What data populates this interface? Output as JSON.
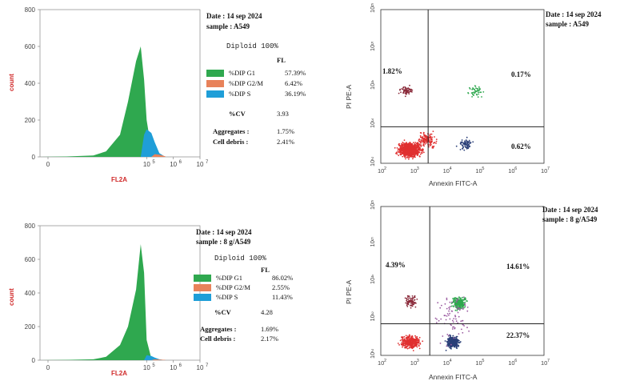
{
  "colors": {
    "g1": "#2fa84f",
    "g2m": "#e8825a",
    "s": "#1f9ed8",
    "lowleft": "#e03030",
    "upleft": "#8a2a3a",
    "upright": "#2fa84f",
    "lowright": "#2a3f78",
    "label": "#d02a2a"
  },
  "panels": {
    "hist_top": {
      "header_date": "Date : 14 sep 2024",
      "header_sample": "sample : A549",
      "diploid": "Diploid 100%",
      "fl": "FL",
      "rows": [
        {
          "label": "%DIP G1",
          "value": "57.39%"
        },
        {
          "label": "%DIP G2/M",
          "value": "6.42%"
        },
        {
          "label": "%DIP S",
          "value": "36.19%"
        }
      ],
      "cv_label": "%CV",
      "cv_value": "3.93",
      "agg_label": "Aggregates :",
      "agg_value": "1.75%",
      "deb_label": "Cell debris :",
      "deb_value": "2.41%",
      "ylabel": "count",
      "xlabel": "FL2A",
      "yticks": [
        "0",
        "200",
        "400",
        "600",
        "800"
      ],
      "xticks": [
        "0",
        "10",
        "5",
        "10",
        "6",
        "10",
        "7"
      ]
    },
    "hist_bottom": {
      "header_date": "Date : 14 sep 2024",
      "header_sample": "sample : 8 g/A549",
      "diploid": "Diploid 100%",
      "fl": "FL",
      "rows": [
        {
          "label": "%DIP G1",
          "value": "86.02%"
        },
        {
          "label": "%DIP G2/M",
          "value": "2.55%"
        },
        {
          "label": "%DIP S",
          "value": "11.43%"
        }
      ],
      "cv_label": "%CV",
      "cv_value": "4.28",
      "agg_label": "Aggregates :",
      "agg_value": "1.69%",
      "deb_label": "Cell debris :",
      "deb_value": "2.17%",
      "ylabel": "count",
      "xlabel": "FL2A",
      "yticks": [
        "0",
        "200",
        "400",
        "600",
        "800"
      ],
      "xticks": [
        "0",
        "10",
        "5",
        "10",
        "6",
        "10",
        "7"
      ]
    },
    "dot_top": {
      "header_date": "Date : 14 sep 2024",
      "header_sample": "sample : A549",
      "ylabel": "PI PE-A",
      "xlabel": "Annexin FITC-A",
      "q_ul": "1.82%",
      "q_ur": "0.17%",
      "q_lr": "0.62%"
    },
    "dot_bottom": {
      "header_date": "Date : 14 sep 2024",
      "header_sample": "sample : 8 g/A549",
      "ylabel": "PI PE-A",
      "xlabel": "Annexin FITC-A",
      "q_ul": "4.39%",
      "q_ur": "14.61%",
      "q_lr": "22.37%"
    }
  },
  "chart_data": [
    {
      "type": "area",
      "title": "",
      "xlabel": "FL2A",
      "ylabel": "count",
      "ylim": [
        0,
        800
      ],
      "x_scale": "log",
      "x": [
        10,
        100,
        1000,
        3000,
        10000,
        20000,
        40000,
        60000,
        80000,
        100000,
        150000,
        200000,
        300000,
        500000
      ],
      "series": [
        {
          "name": "%DIP G1",
          "values": [
            0,
            2,
            8,
            30,
            120,
            300,
            520,
            600,
            420,
            200,
            40,
            5,
            0,
            0
          ]
        },
        {
          "name": "%DIP S",
          "values": [
            0,
            0,
            0,
            0,
            0,
            0,
            0,
            0,
            120,
            150,
            130,
            80,
            20,
            0
          ]
        },
        {
          "name": "%DIP G2/M",
          "values": [
            0,
            0,
            0,
            0,
            0,
            0,
            0,
            0,
            0,
            0,
            0,
            15,
            12,
            3
          ]
        }
      ]
    },
    {
      "type": "area",
      "title": "",
      "xlabel": "FL2A",
      "ylabel": "count",
      "ylim": [
        0,
        800
      ],
      "x_scale": "log",
      "x": [
        10,
        100,
        1000,
        3000,
        10000,
        20000,
        40000,
        60000,
        80000,
        100000,
        150000,
        200000,
        300000,
        500000
      ],
      "series": [
        {
          "name": "%DIP G1",
          "values": [
            0,
            2,
            5,
            20,
            90,
            200,
            420,
            690,
            520,
            120,
            10,
            2,
            0,
            0
          ]
        },
        {
          "name": "%DIP S",
          "values": [
            0,
            0,
            0,
            0,
            0,
            0,
            0,
            0,
            0,
            30,
            25,
            15,
            5,
            0
          ]
        },
        {
          "name": "%DIP G2/M",
          "values": [
            0,
            0,
            0,
            0,
            0,
            0,
            0,
            0,
            0,
            0,
            0,
            5,
            4,
            2
          ]
        }
      ]
    },
    {
      "type": "scatter",
      "xlabel": "Annexin FITC-A",
      "ylabel": "PI PE-A",
      "x_scale": "log",
      "y_scale": "log",
      "xlim": [
        100,
        10000000
      ],
      "ylim": [
        100,
        1000000
      ],
      "quadrants": {
        "upper_left": "1.82%",
        "upper_right": "0.17%",
        "lower_right": "0.62%"
      }
    },
    {
      "type": "scatter",
      "xlabel": "Annexin FITC-A",
      "ylabel": "PI PE-A",
      "x_scale": "log",
      "y_scale": "log",
      "xlim": [
        100,
        10000000
      ],
      "ylim": [
        100,
        1000000
      ],
      "quadrants": {
        "upper_left": "4.39%",
        "upper_right": "14.61%",
        "lower_right": "22.37%"
      }
    }
  ]
}
